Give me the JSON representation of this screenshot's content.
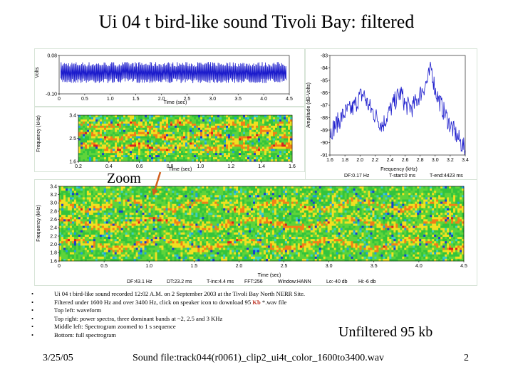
{
  "slide": {
    "title": "Ui 04 t bird-like sound Tivoli Bay: filtered",
    "zoom_label": "Zoom",
    "bullets": [
      "Ui 04 t bird-like sound recorded 12:02 A.M. on 2 September 2003 at the Tivoli Bay North NERR Site.",
      "Filtered under 1600 Hz and over 3400 Hz, click on speaker icon to download 95 ",
      "Top left: waveform",
      "Top right: power spectra, three dominant bands at ~2, 2.5 and 3 KHz",
      "Middle left: Spectrogram zoomed to 1 s sequence",
      "Bottom: full spectrogram"
    ],
    "bullet2_highlight": "Kb",
    "bullet2_tail": " *.wav file",
    "unfiltered": "Unfiltered 95 kb",
    "date": "3/25/05",
    "sound_file": "Sound file:track044(r0061)_clip2_ui4t_color_1600to3400.wav",
    "page_number": "2"
  },
  "colors": {
    "trace": "#1c1ccc",
    "spectrogram": [
      "#1a3fd0",
      "#1fa0e0",
      "#3ad0c0",
      "#34c43c",
      "#5ed43a",
      "#f0e020",
      "#f08018",
      "#d82020"
    ],
    "arrow": "#d2601e"
  },
  "chart_data": [
    {
      "id": "waveform",
      "type": "line",
      "title": "",
      "xlabel": "Time (sec)",
      "ylabel": "Volts",
      "xlim": [
        0,
        4.5
      ],
      "xticks": [
        "0",
        "0.5",
        "1.0",
        "1.5",
        "2.0",
        "2.5",
        "3.0",
        "3.5",
        "4.0",
        "4.5"
      ],
      "yticks": [
        "0.08",
        "-0.10"
      ],
      "ylim": [
        -0.1,
        0.08
      ],
      "amplitude": 0.05
    },
    {
      "id": "power_spectrum",
      "type": "line",
      "title": "",
      "xlabel": "Frequency (kHz)",
      "ylabel": "Amplitude (dB-Volts)",
      "xlim": [
        1.6,
        3.4
      ],
      "ylim": [
        -91,
        -83
      ],
      "xticks": [
        "1.6",
        "1.8",
        "2.0",
        "2.2",
        "2.4",
        "2.6",
        "2.8",
        "3.0",
        "3.2",
        "3.4"
      ],
      "yticks": [
        "-83",
        "-84",
        "-85",
        "-86",
        "-87",
        "-88",
        "-89",
        "-90",
        "-91"
      ],
      "series": [
        {
          "x": [
            1.6,
            1.7,
            1.8,
            1.9,
            2.0,
            2.05,
            2.1,
            2.2,
            2.3,
            2.4,
            2.5,
            2.55,
            2.6,
            2.7,
            2.8,
            2.9,
            2.95,
            3.0,
            3.1,
            3.2,
            3.3,
            3.4
          ],
          "y": [
            -89.2,
            -88.4,
            -87.6,
            -87.3,
            -86.3,
            -86.1,
            -86.9,
            -87.8,
            -88.6,
            -87.4,
            -86.3,
            -86.0,
            -87.0,
            -87.2,
            -86.1,
            -85.0,
            -84.0,
            -85.8,
            -87.3,
            -88.6,
            -89.6,
            -90.6
          ]
        }
      ],
      "annotations": [
        "DF:0.17 Hz",
        "T-start:0 ms",
        "T-end:4423 ms"
      ]
    },
    {
      "id": "zoom_spectrogram",
      "type": "heatmap",
      "title": "",
      "xlabel": "Time (sec)",
      "ylabel": "Frequency (kHz)",
      "xlim": [
        0.2,
        1.6
      ],
      "ylim": [
        1.6,
        3.4
      ],
      "xticks": [
        "0.2",
        "0.4",
        "0.6",
        "0.8",
        "1.0",
        "1.2",
        "1.4",
        "1.6"
      ],
      "yticks": [
        "3.4",
        "2.5",
        "1.6"
      ]
    },
    {
      "id": "full_spectrogram",
      "type": "heatmap",
      "title": "",
      "xlabel": "Time (sec)",
      "ylabel": "Frequency (kHz)",
      "xlim": [
        0,
        4.5
      ],
      "ylim": [
        1.6,
        3.4
      ],
      "xticks": [
        "0",
        "0.5",
        "1.0",
        "1.5",
        "2.0",
        "2.5",
        "3.0",
        "3.5",
        "4.0",
        "4.5"
      ],
      "yticks": [
        "3.4",
        "3.2",
        "3.0",
        "2.8",
        "2.6",
        "2.4",
        "2.2",
        "2.0",
        "1.8",
        "1.6"
      ],
      "annotations": [
        "DF:43.1 Hz",
        "DT:23.2 ms",
        "T-inc:4.4 ms",
        "FFT:256",
        "Window:HANN",
        "Lo:-40 db",
        "Hi:-6 db"
      ]
    }
  ]
}
